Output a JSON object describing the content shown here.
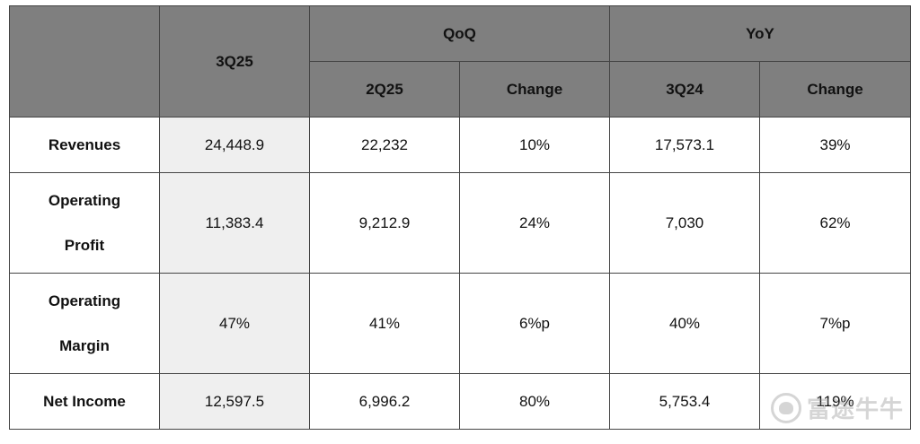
{
  "header": {
    "current_period": "3Q25",
    "qoq_group": "QoQ",
    "yoy_group": "YoY",
    "qoq_period": "2Q25",
    "qoq_change": "Change",
    "yoy_period": "3Q24",
    "yoy_change": "Change"
  },
  "rows": [
    {
      "label_lines": [
        "Revenues"
      ],
      "current": "24,448.9",
      "qoq_value": "22,232",
      "qoq_change": "10%",
      "yoy_value": "17,573.1",
      "yoy_change": "39%"
    },
    {
      "label_lines": [
        "Operating",
        "Profit"
      ],
      "current": "11,383.4",
      "qoq_value": "9,212.9",
      "qoq_change": "24%",
      "yoy_value": "7,030",
      "yoy_change": "62%"
    },
    {
      "label_lines": [
        "Operating",
        "Margin"
      ],
      "current": "47%",
      "qoq_value": "41%",
      "qoq_change": "6%p",
      "yoy_value": "40%",
      "yoy_change": "7%p"
    },
    {
      "label_lines": [
        "Net Income"
      ],
      "current": "12,597.5",
      "qoq_value": "6,996.2",
      "qoq_change": "80%",
      "yoy_value": "5,753.4",
      "yoy_change": "119%"
    }
  ],
  "watermark": {
    "text": "富途牛牛",
    "icon": "moomoo-bull-logo-icon"
  }
}
